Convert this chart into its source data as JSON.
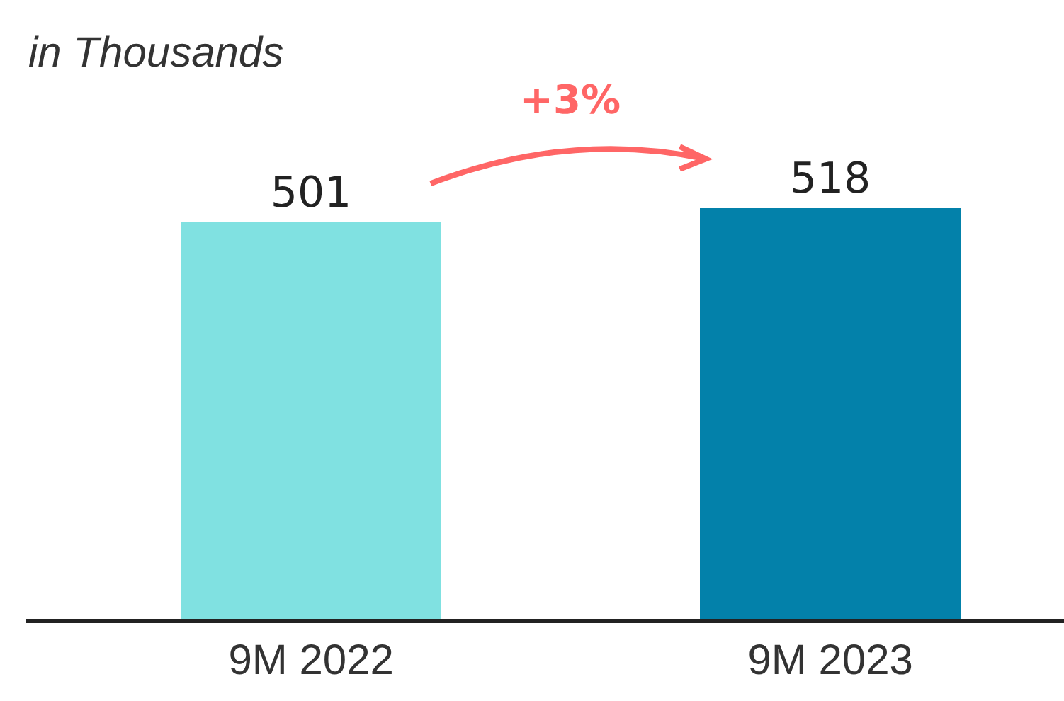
{
  "chart_data": {
    "type": "bar",
    "subtitle": "in Thousands",
    "categories": [
      "9M 2022",
      "9M 2023"
    ],
    "values": [
      501,
      518
    ],
    "colors": [
      "#80e1e1",
      "#0381aa"
    ],
    "data_labels": true,
    "annotations": [
      "+3%"
    ]
  }
}
